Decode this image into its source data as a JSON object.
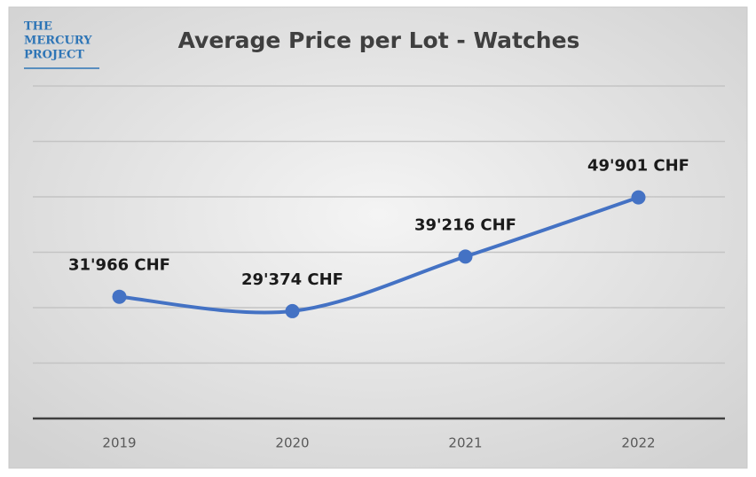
{
  "logo": [
    "THE",
    "MERCURY",
    "PROJECT"
  ],
  "chart_data": {
    "type": "line",
    "title": "Average Price per Lot - Watches",
    "categories": [
      "2019",
      "2020",
      "2021",
      "2022"
    ],
    "series": [
      {
        "name": "Average Price per Lot",
        "color": "#4472c4",
        "values": [
          31966,
          29374,
          39216,
          49901
        ],
        "value_labels": [
          "31'966 CHF",
          "29'374 CHF",
          "39'216 CHF",
          "49'901 CHF"
        ]
      }
    ],
    "ylim": [
      10000,
      70000
    ],
    "yticks": [
      10000,
      20000,
      30000,
      40000,
      50000,
      60000,
      70000
    ],
    "grid": true,
    "smooth": true
  }
}
